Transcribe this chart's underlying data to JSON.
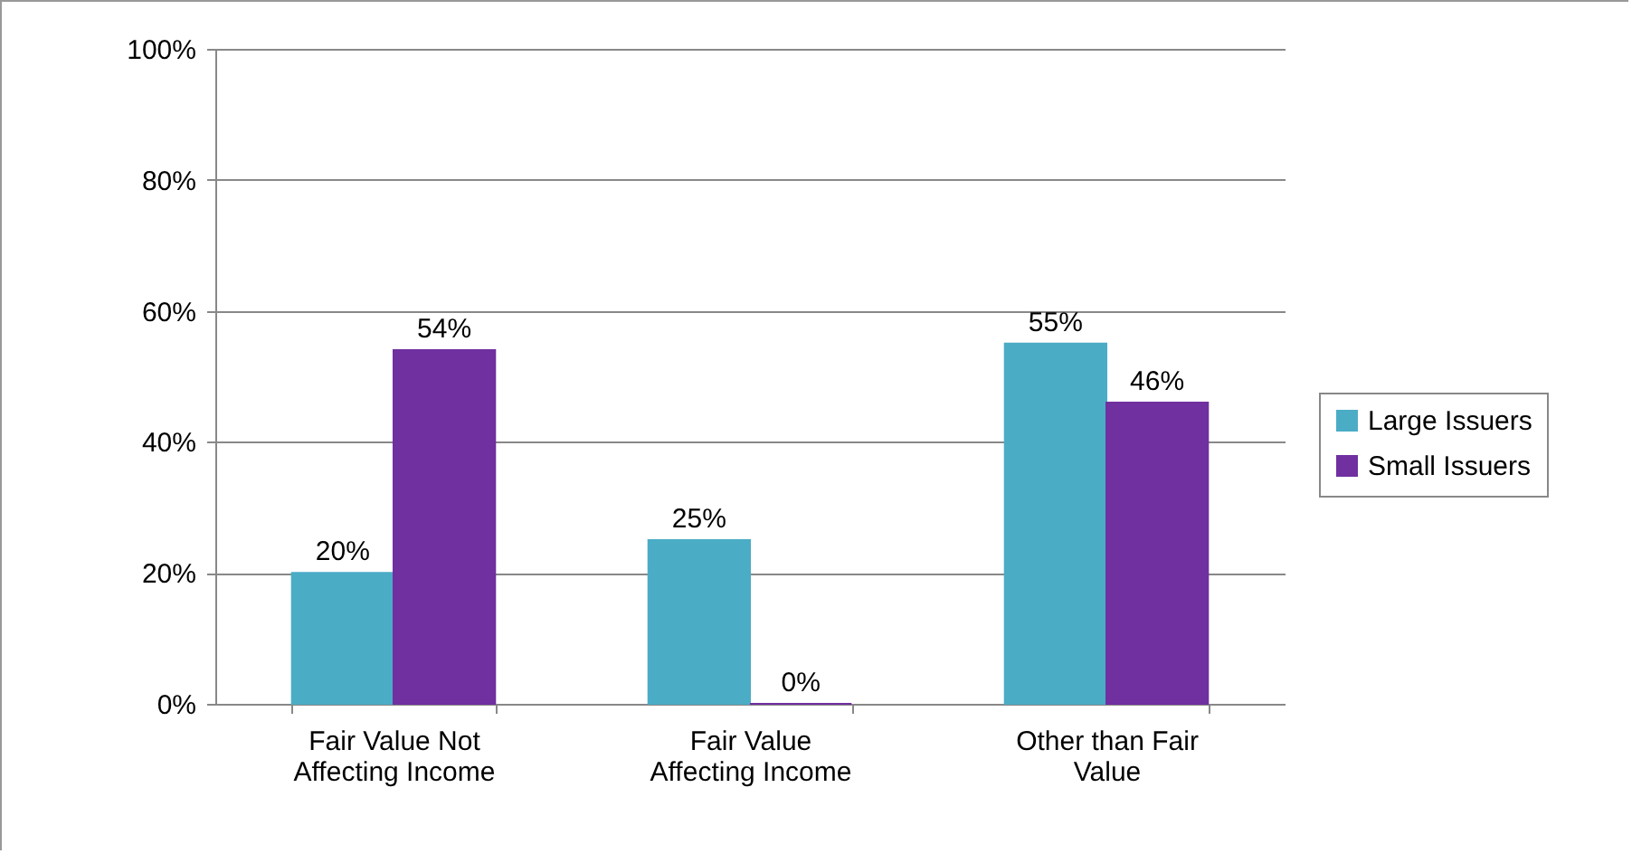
{
  "chart_data": {
    "type": "bar",
    "categories": [
      "Fair Value Not Affecting Income",
      "Fair Value Affecting Income",
      "Other than Fair Value"
    ],
    "series": [
      {
        "name": "Large Issuers",
        "color": "#4bacc6",
        "values": [
          20,
          25,
          55
        ],
        "value_labels": [
          "20%",
          "25%",
          "55%"
        ]
      },
      {
        "name": "Small Issuers",
        "color": "#7030a0",
        "values": [
          54,
          0,
          46
        ],
        "value_labels": [
          "54%",
          "0%",
          "46%"
        ]
      }
    ],
    "ylim": [
      0,
      100
    ],
    "yticks": [
      {
        "value": 0,
        "label": "0%"
      },
      {
        "value": 20,
        "label": "20%"
      },
      {
        "value": 40,
        "label": "40%"
      },
      {
        "value": 60,
        "label": "60%"
      },
      {
        "value": 80,
        "label": "80%"
      },
      {
        "value": 100,
        "label": "100%"
      }
    ],
    "grid": "y",
    "legend": "right"
  }
}
